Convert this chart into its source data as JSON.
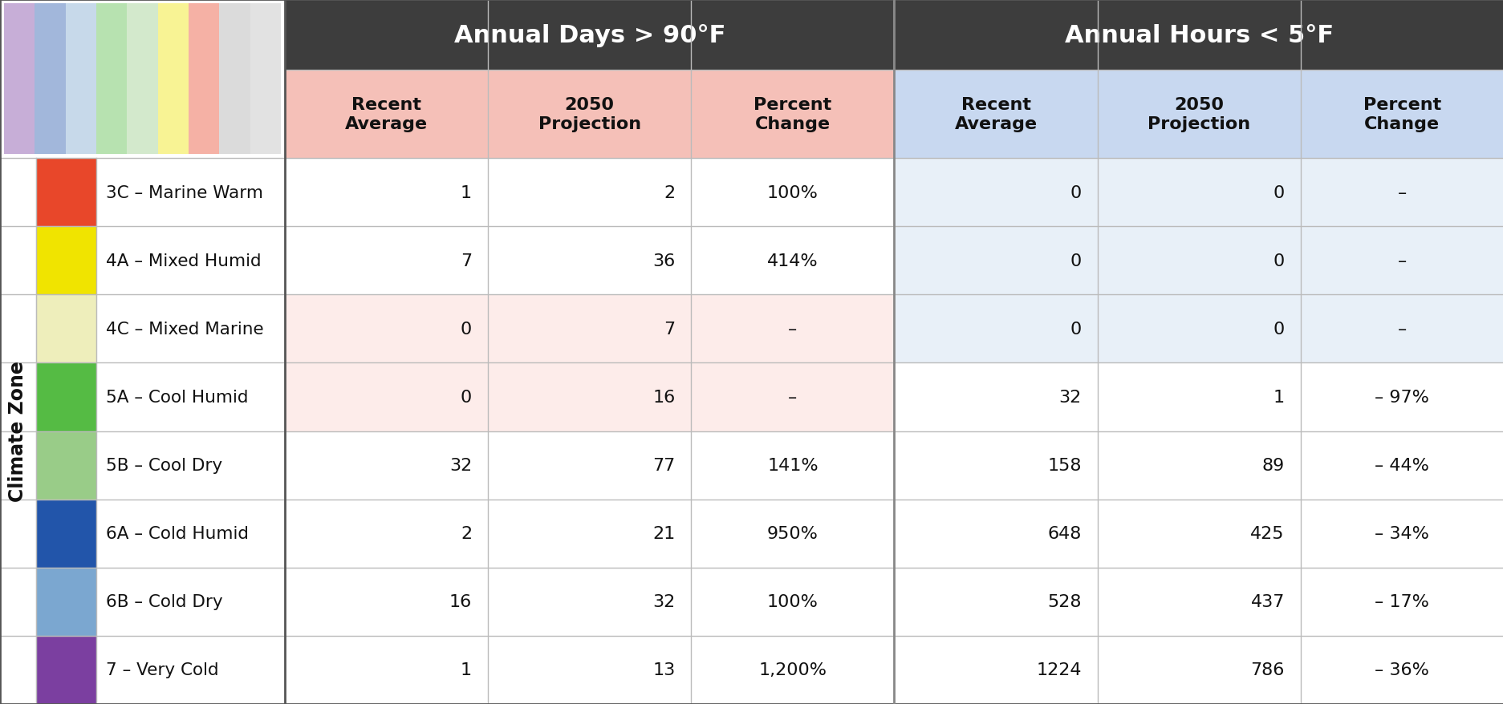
{
  "title_hot": "Annual Days > 90°F",
  "title_cold": "Annual Hours < 5°F",
  "subheaders": [
    "Recent\nAverage",
    "2050\nProjection",
    "Percent\nChange",
    "Recent\nAverage",
    "2050\nProjection",
    "Percent\nChange"
  ],
  "ylabel": "Climate Zone",
  "zones": [
    {
      "label": "3C – Marine Warm",
      "color": "#E8472A"
    },
    {
      "label": "4A – Mixed Humid",
      "color": "#F0E400"
    },
    {
      "label": "4C – Mixed Marine",
      "color": "#EEEEBB"
    },
    {
      "label": "5A – Cool Humid",
      "color": "#55BB44"
    },
    {
      "label": "5B – Cool Dry",
      "color": "#99CC88"
    },
    {
      "label": "6A – Cold Humid",
      "color": "#2255AA"
    },
    {
      "label": "6B – Cold Dry",
      "color": "#7BA7D0"
    },
    {
      "label": "7 – Very Cold",
      "color": "#7B3FA0"
    }
  ],
  "hot_data": [
    [
      "1",
      "2",
      "100%"
    ],
    [
      "7",
      "36",
      "414%"
    ],
    [
      "0",
      "7",
      "–"
    ],
    [
      "0",
      "16",
      "–"
    ],
    [
      "32",
      "77",
      "141%"
    ],
    [
      "2",
      "21",
      "950%"
    ],
    [
      "16",
      "32",
      "100%"
    ],
    [
      "1",
      "13",
      "1,200%"
    ]
  ],
  "cold_data": [
    [
      "0",
      "0",
      "–"
    ],
    [
      "0",
      "0",
      "–"
    ],
    [
      "0",
      "0",
      "–"
    ],
    [
      "32",
      "1",
      "– 97%"
    ],
    [
      "158",
      "89",
      "– 44%"
    ],
    [
      "648",
      "425",
      "– 34%"
    ],
    [
      "528",
      "437",
      "– 17%"
    ],
    [
      "1224",
      "786",
      "– 36%"
    ]
  ],
  "hot_dash_rows": [
    2,
    3
  ],
  "cold_dash_rows": [
    0,
    1,
    2
  ],
  "header_bg_dark": "#3D3D3D",
  "header_text_dark": "#FFFFFF",
  "header_bg_hot": "#F5C0B8",
  "header_bg_cold": "#C8D8F0",
  "cell_bg_hot_dash": "#FDECEA",
  "cell_bg_cold_dash": "#E8F0F8",
  "cell_bg_white": "#FFFFFF",
  "row_line_color": "#BBBBBB",
  "outer_border_color": "#555555",
  "background_color": "#FFFFFF",
  "figw": 18.74,
  "figh": 8.79,
  "dpi": 100
}
